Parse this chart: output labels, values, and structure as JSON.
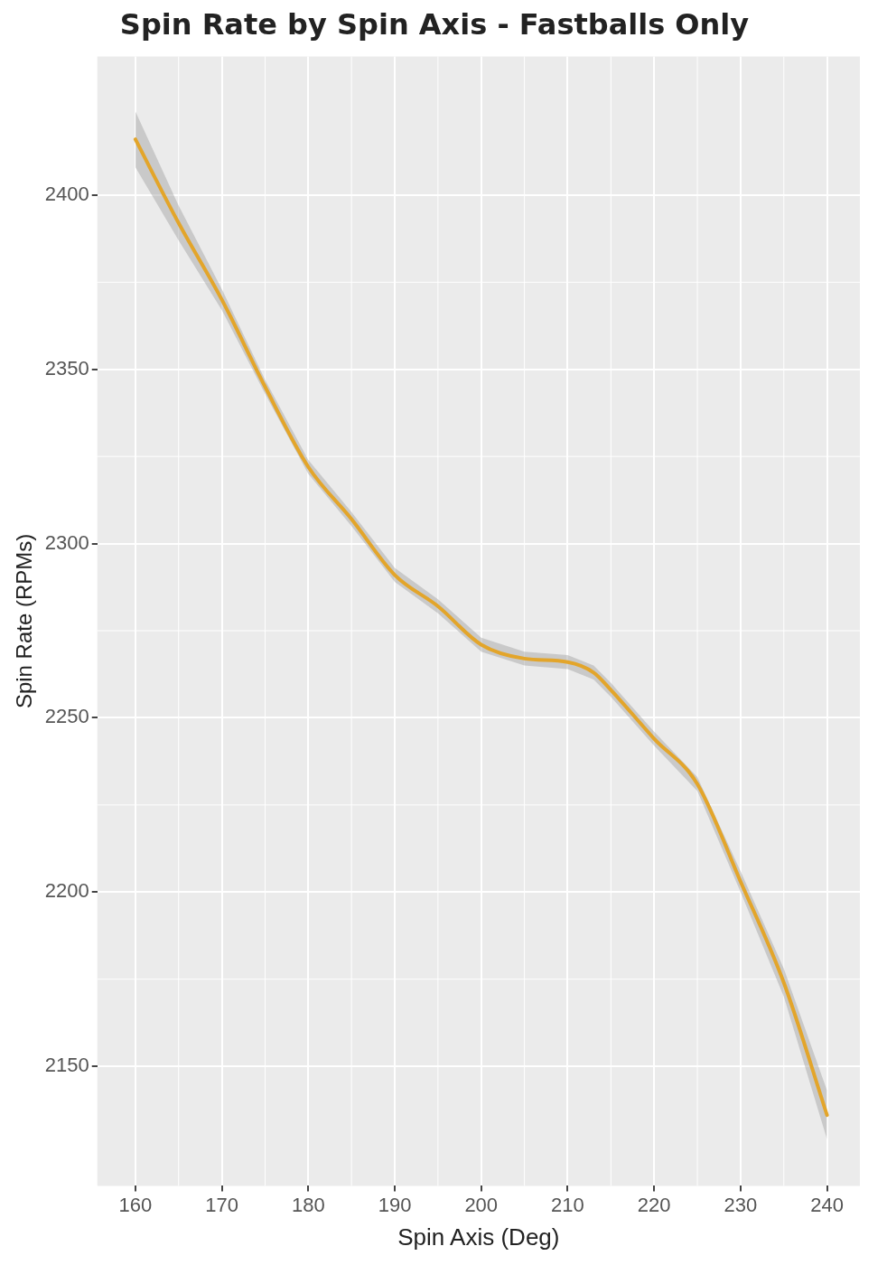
{
  "chart_data": {
    "type": "line",
    "title": "Spin Rate by Spin Axis - Fastballs Only",
    "xlabel": "Spin Axis (Deg)",
    "ylabel": "Spin Rate (RPMs)",
    "x": [
      160,
      165,
      170,
      175,
      180,
      185,
      190,
      195,
      200,
      205,
      210,
      213,
      215,
      220,
      225,
      230,
      235,
      240
    ],
    "series": [
      {
        "color": "#e3a52a",
        "values": [
          2416,
          2392,
          2370,
          2345,
          2322,
          2307,
          2291,
          2282,
          2271,
          2267,
          2266,
          2263,
          2258,
          2244,
          2231,
          2203,
          2174,
          2136
        ],
        "lower": [
          2408,
          2387,
          2367,
          2343,
          2320,
          2305,
          2289,
          2280,
          2269,
          2265,
          2264,
          2261,
          2256,
          2242,
          2229,
          2200,
          2170,
          2129
        ],
        "upper": [
          2424,
          2397,
          2373,
          2347,
          2324,
          2309,
          2293,
          2284,
          2273,
          2269,
          2268,
          2265,
          2260,
          2246,
          2233,
          2206,
          2178,
          2143
        ]
      }
    ],
    "xlim": [
      155.6,
      243.8
    ],
    "ylim": [
      2115.7,
      2439.8
    ],
    "xticks": [
      160,
      170,
      180,
      190,
      200,
      210,
      220,
      230,
      240
    ],
    "yticks": [
      2150,
      2200,
      2250,
      2300,
      2350,
      2400
    ],
    "grid": true,
    "legend": false,
    "marker": "none",
    "line_style": "solid"
  }
}
